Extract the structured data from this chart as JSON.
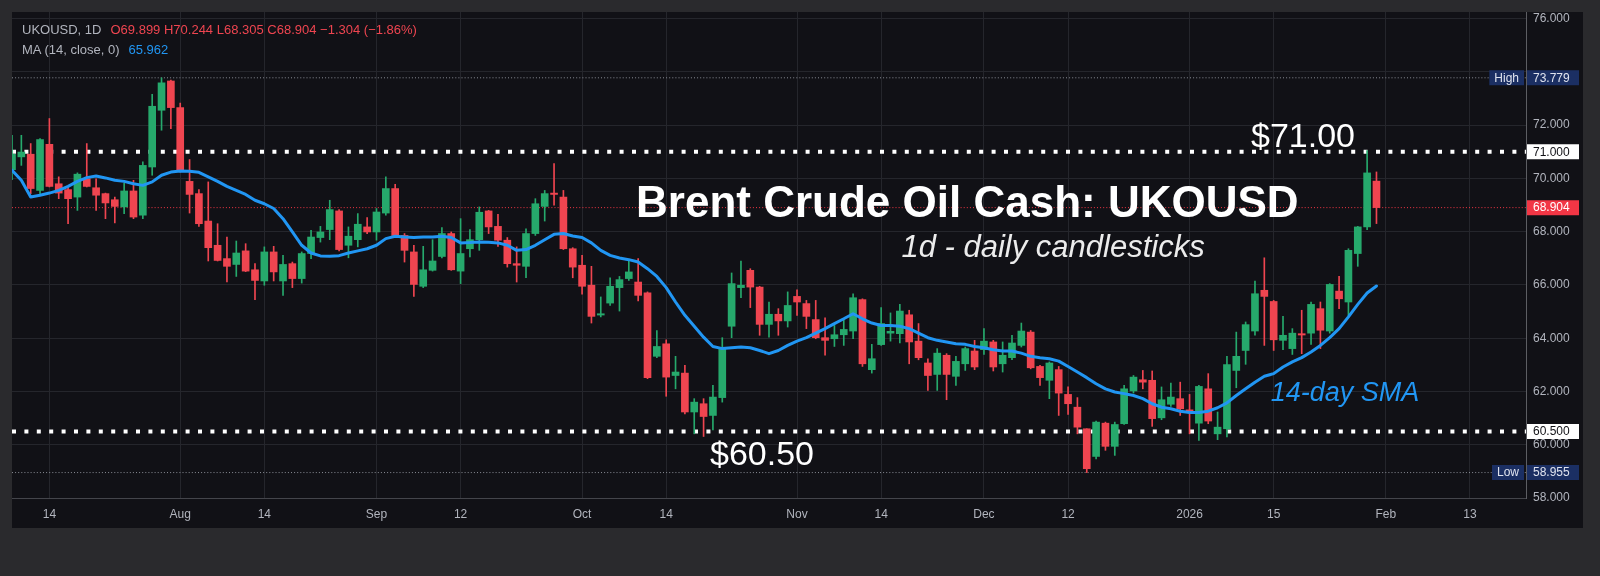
{
  "chart_data": {
    "type": "candlestick",
    "title": "Brent Crude Oil Cash: UKOUSD",
    "subtitle": "1d - daily candlesticks",
    "categories": [
      null,
      null,
      null,
      null,
      "14",
      null,
      null,
      null,
      null,
      null,
      null,
      null,
      null,
      null,
      null,
      null,
      null,
      null,
      "Aug",
      null,
      null,
      null,
      null,
      null,
      null,
      null,
      null,
      "14",
      null,
      null,
      null,
      null,
      null,
      null,
      null,
      null,
      null,
      null,
      null,
      "Sep",
      null,
      null,
      null,
      null,
      null,
      null,
      null,
      null,
      "12",
      null,
      null,
      null,
      null,
      null,
      null,
      null,
      null,
      null,
      null,
      null,
      null,
      "Oct",
      null,
      null,
      null,
      null,
      null,
      null,
      null,
      null,
      "14",
      null,
      null,
      null,
      null,
      null,
      null,
      null,
      null,
      null,
      null,
      null,
      null,
      null,
      "Nov",
      null,
      null,
      null,
      null,
      null,
      null,
      null,
      null,
      "14",
      null,
      null,
      null,
      null,
      null,
      null,
      null,
      null,
      null,
      null,
      "Dec",
      null,
      null,
      null,
      null,
      null,
      null,
      null,
      null,
      "12",
      null,
      null,
      null,
      null,
      null,
      null,
      null,
      null,
      null,
      null,
      null,
      null,
      "2026",
      null,
      null,
      null,
      null,
      null,
      null,
      null,
      null,
      "15",
      null,
      null,
      null,
      null,
      null,
      null,
      null,
      null,
      null,
      null,
      null,
      "Feb",
      null,
      null,
      null,
      null,
      null,
      null,
      null,
      null,
      "13",
      null,
      null,
      null,
      null,
      null,
      null
    ],
    "series": [
      {
        "ohlc": [
          [
            70.33,
            71.62,
            69.95,
            70.91
          ],
          [
            70.81,
            71.62,
            70.49,
            70.99
          ],
          [
            70.91,
            71.31,
            69.43,
            69.62
          ],
          [
            69.55,
            71.5,
            69.43,
            71.46
          ],
          [
            71.28,
            72.25,
            69.68,
            69.7
          ],
          [
            69.8,
            70.06,
            69.24,
            69.45
          ],
          [
            69.58,
            69.68,
            68.3,
            69.24
          ],
          [
            69.3,
            70.21,
            68.8,
            70.16
          ],
          [
            69.99,
            71.31,
            69.68,
            69.7
          ],
          [
            69.65,
            69.99,
            68.8,
            69.37
          ],
          [
            69.43,
            69.45,
            68.49,
            69.08
          ],
          [
            69.2,
            69.3,
            68.33,
            68.95
          ],
          [
            68.93,
            69.83,
            68.68,
            69.53
          ],
          [
            69.53,
            69.93,
            68.49,
            68.55
          ],
          [
            68.62,
            70.62,
            68.49,
            70.49
          ],
          [
            70.43,
            73.16,
            70.12,
            72.71
          ],
          [
            72.56,
            73.779,
            71.81,
            73.59
          ],
          [
            73.66,
            73.69,
            71.87,
            72.66
          ],
          [
            72.66,
            72.83,
            70.24,
            70.28
          ],
          [
            69.89,
            70.71,
            68.7,
            69.4
          ],
          [
            69.43,
            69.58,
            68.2,
            68.3
          ],
          [
            68.4,
            69.87,
            66.9,
            67.4
          ],
          [
            67.49,
            68.3,
            66.9,
            66.92
          ],
          [
            66.99,
            67.8,
            66.11,
            66.7
          ],
          [
            66.77,
            67.65,
            66.32,
            67.2
          ],
          [
            67.28,
            67.55,
            66.5,
            66.52
          ],
          [
            66.57,
            66.8,
            65.45,
            66.17
          ],
          [
            66.15,
            67.43,
            65.99,
            67.24
          ],
          [
            67.24,
            67.45,
            66.15,
            66.49
          ],
          [
            66.15,
            67.11,
            65.61,
            66.77
          ],
          [
            66.8,
            66.86,
            65.9,
            66.24
          ],
          [
            66.24,
            67.24,
            66.07,
            67.18
          ],
          [
            67.18,
            68.05,
            66.99,
            67.8
          ],
          [
            67.78,
            68.2,
            67.61,
            67.99
          ],
          [
            68.08,
            69.18,
            67.7,
            68.83
          ],
          [
            68.78,
            68.83,
            67.28,
            67.33
          ],
          [
            67.49,
            68.18,
            67.02,
            67.83
          ],
          [
            67.7,
            68.68,
            67.43,
            68.28
          ],
          [
            68.18,
            68.53,
            67.93,
            67.99
          ],
          [
            67.99,
            68.87,
            67.68,
            68.74
          ],
          [
            68.7,
            70.06,
            68.62,
            69.62
          ],
          [
            69.62,
            69.78,
            67.83,
            67.86
          ],
          [
            67.86,
            67.93,
            66.86,
            67.3
          ],
          [
            67.24,
            67.49,
            65.57,
            66.02
          ],
          [
            65.95,
            67.45,
            65.9,
            66.57
          ],
          [
            66.55,
            67.7,
            66.52,
            66.9
          ],
          [
            67.07,
            68.15,
            67.02,
            67.93
          ],
          [
            67.93,
            67.99,
            66.55,
            66.57
          ],
          [
            66.52,
            68.49,
            66.05,
            67.18
          ],
          [
            67.36,
            68.08,
            67.05,
            67.7
          ],
          [
            67.7,
            68.93,
            67.3,
            68.73
          ],
          [
            68.78,
            68.8,
            67.93,
            68.18
          ],
          [
            68.2,
            68.65,
            67.45,
            67.68
          ],
          [
            67.68,
            67.78,
            66.67,
            66.8
          ],
          [
            66.8,
            67.43,
            66.11,
            66.74
          ],
          [
            66.7,
            68.11,
            66.27,
            67.93
          ],
          [
            67.93,
            69.24,
            67.86,
            69.05
          ],
          [
            68.95,
            69.55,
            68.4,
            69.43
          ],
          [
            69.45,
            70.56,
            69.0,
            69.4
          ],
          [
            69.3,
            69.55,
            67.33,
            67.36
          ],
          [
            67.36,
            67.4,
            66.27,
            66.67
          ],
          [
            66.74,
            67.11,
            65.65,
            65.95
          ],
          [
            65.99,
            66.7,
            64.57,
            64.82
          ],
          [
            64.87,
            65.55,
            64.8,
            64.92
          ],
          [
            65.32,
            66.27,
            65.23,
            65.95
          ],
          [
            65.9,
            66.32,
            65.02,
            66.2
          ],
          [
            66.24,
            66.92,
            66.17,
            66.49
          ],
          [
            66.11,
            66.99,
            65.4,
            65.61
          ],
          [
            65.7,
            65.74,
            62.48,
            62.52
          ],
          [
            63.32,
            64.29,
            63.27,
            63.69
          ],
          [
            63.79,
            63.94,
            61.82,
            62.54
          ],
          [
            62.6,
            63.32,
            62.1,
            62.73
          ],
          [
            62.69,
            62.98,
            61.16,
            61.23
          ],
          [
            61.23,
            61.73,
            60.41,
            61.6
          ],
          [
            61.54,
            61.73,
            60.31,
            61.06
          ],
          [
            61.1,
            62.23,
            60.56,
            61.79
          ],
          [
            61.77,
            64.02,
            61.6,
            63.61
          ],
          [
            64.45,
            66.45,
            64.02,
            66.05
          ],
          [
            65.9,
            66.9,
            65.52,
            65.99
          ],
          [
            66.55,
            66.61,
            65.15,
            65.92
          ],
          [
            65.92,
            65.95,
            64.11,
            64.52
          ],
          [
            64.52,
            65.36,
            64.04,
            64.9
          ],
          [
            64.9,
            65.11,
            64.11,
            64.65
          ],
          [
            64.65,
            65.74,
            64.42,
            65.23
          ],
          [
            65.57,
            65.82,
            64.86,
            65.36
          ],
          [
            65.3,
            65.42,
            64.36,
            64.82
          ],
          [
            64.7,
            65.42,
            63.98,
            64.02
          ],
          [
            64.02,
            64.77,
            63.36,
            63.92
          ],
          [
            63.98,
            64.48,
            63.69,
            64.13
          ],
          [
            64.13,
            64.73,
            63.73,
            64.33
          ],
          [
            64.27,
            65.67,
            63.98,
            65.52
          ],
          [
            65.45,
            65.48,
            62.94,
            63.04
          ],
          [
            62.82,
            63.77,
            62.69,
            63.23
          ],
          [
            63.76,
            65.15,
            63.73,
            64.55
          ],
          [
            64.19,
            64.95,
            63.89,
            64.26
          ],
          [
            64.17,
            65.27,
            63.82,
            65.02
          ],
          [
            64.88,
            65.05,
            63.04,
            63.86
          ],
          [
            63.89,
            64.55,
            63.19,
            63.27
          ],
          [
            63.07,
            63.23,
            62.04,
            62.6
          ],
          [
            62.64,
            63.61,
            62.04,
            63.44
          ],
          [
            63.36,
            63.42,
            61.69,
            62.64
          ],
          [
            62.57,
            63.32,
            62.23,
            63.13
          ],
          [
            63.04,
            63.67,
            62.79,
            63.61
          ],
          [
            63.52,
            63.92,
            62.82,
            62.92
          ],
          [
            63.57,
            64.36,
            63.39,
            63.89
          ],
          [
            63.86,
            63.92,
            62.77,
            62.92
          ],
          [
            63.04,
            63.86,
            62.73,
            63.36
          ],
          [
            63.27,
            64.11,
            63.19,
            63.82
          ],
          [
            63.73,
            64.57,
            63.67,
            64.27
          ],
          [
            64.23,
            64.29,
            62.85,
            62.89
          ],
          [
            62.94,
            62.98,
            62.23,
            62.52
          ],
          [
            62.42,
            63.11,
            61.73,
            63.07
          ],
          [
            62.82,
            62.94,
            61.1,
            61.94
          ],
          [
            61.89,
            62.17,
            61.14,
            61.54
          ],
          [
            61.41,
            61.77,
            60.41,
            60.66
          ],
          [
            60.6,
            60.6,
            58.955,
            59.1
          ],
          [
            59.56,
            60.89,
            59.47,
            60.85
          ],
          [
            60.81,
            60.85,
            59.79,
            59.94
          ],
          [
            59.94,
            60.85,
            59.6,
            60.76
          ],
          [
            60.79,
            62.23,
            60.76,
            62.1
          ],
          [
            62.02,
            62.6,
            61.94,
            62.54
          ],
          [
            62.44,
            62.79,
            62.1,
            62.35
          ],
          [
            62.42,
            62.77,
            60.69,
            60.98
          ],
          [
            61.01,
            62.17,
            60.94,
            61.69
          ],
          [
            61.52,
            62.32,
            61.44,
            61.79
          ],
          [
            61.73,
            62.35,
            61.1,
            61.35
          ],
          [
            61.31,
            61.89,
            60.41,
            61.21
          ],
          [
            60.81,
            62.23,
            60.16,
            62.19
          ],
          [
            62.1,
            62.67,
            60.79,
            60.89
          ],
          [
            60.41,
            61.23,
            60.19,
            60.66
          ],
          [
            60.6,
            63.32,
            60.29,
            63.01
          ],
          [
            62.79,
            64.23,
            62.14,
            63.32
          ],
          [
            63.54,
            64.61,
            63.02,
            64.51
          ],
          [
            64.27,
            66.15,
            64.11,
            65.67
          ],
          [
            65.8,
            67.02,
            63.73,
            65.57
          ],
          [
            65.38,
            65.42,
            63.54,
            63.94
          ],
          [
            63.92,
            64.82,
            63.57,
            64.11
          ],
          [
            63.61,
            64.36,
            63.39,
            64.19
          ],
          [
            64.17,
            65.05,
            63.42,
            64.12
          ],
          [
            64.19,
            65.36,
            63.77,
            65.27
          ],
          [
            65.11,
            65.36,
            63.61,
            64.3
          ],
          [
            64.27,
            66.05,
            64.19,
            66.02
          ],
          [
            65.77,
            66.32,
            65.11,
            65.48
          ],
          [
            65.36,
            67.36,
            64.86,
            67.3
          ],
          [
            67.18,
            68.2,
            66.7,
            68.18
          ],
          [
            68.18,
            71.05,
            68.08,
            70.208
          ],
          [
            69.899,
            70.244,
            68.305,
            68.904
          ],
          null,
          null,
          null,
          null,
          null,
          null,
          null,
          null,
          null,
          null,
          null,
          null,
          null,
          null,
          null,
          null
        ],
        "colors": [
          "#26a96c",
          "#26a96c",
          "#ef4550",
          "#26a96c",
          "#ef4550",
          "#ef4550",
          "#ef4550",
          "#26a96c",
          "#ef4550",
          "#ef4550",
          "#ef4550",
          "#ef4550",
          "#26a96c",
          "#ef4550",
          "#26a96c",
          "#26a96c",
          "#26a96c",
          "#ef4550",
          "#ef4550",
          "#ef4550",
          "#ef4550",
          "#ef4550",
          "#ef4550",
          "#ef4550",
          "#26a96c",
          "#ef4550",
          "#ef4550",
          "#26a96c",
          "#ef4550",
          "#26a96c",
          "#ef4550",
          "#26a96c",
          "#26a96c",
          "#26a96c",
          "#26a96c",
          "#ef4550",
          "#26a96c",
          "#26a96c",
          "#ef4550",
          "#26a96c",
          "#26a96c",
          "#ef4550",
          "#ef4550",
          "#ef4550",
          "#26a96c",
          "#26a96c",
          "#26a96c",
          "#ef4550",
          "#26a96c",
          "#26a96c",
          "#26a96c",
          "#ef4550",
          "#ef4550",
          "#ef4550",
          "#ef4550",
          "#26a96c",
          "#26a96c",
          "#26a96c",
          "#ef4550",
          "#ef4550",
          "#ef4550",
          "#ef4550",
          "#ef4550",
          "#26a96c",
          "#26a96c",
          "#26a96c",
          "#26a96c",
          "#ef4550",
          "#ef4550",
          "#26a96c",
          "#ef4550",
          "#26a96c",
          "#ef4550",
          "#26a96c",
          "#ef4550",
          "#26a96c",
          "#26a96c",
          "#26a96c",
          "#26a96c",
          "#ef4550",
          "#ef4550",
          "#26a96c",
          "#ef4550",
          "#26a96c",
          "#ef4550",
          "#ef4550",
          "#ef4550",
          "#ef4550",
          "#26a96c",
          "#26a96c",
          "#26a96c",
          "#ef4550",
          "#26a96c",
          "#26a96c",
          "#26a96c",
          "#26a96c",
          "#ef4550",
          "#ef4550",
          "#ef4550",
          "#26a96c",
          "#ef4550",
          "#26a96c",
          "#26a96c",
          "#ef4550",
          "#26a96c",
          "#ef4550",
          "#26a96c",
          "#26a96c",
          "#26a96c",
          "#ef4550",
          "#ef4550",
          "#26a96c",
          "#ef4550",
          "#ef4550",
          "#ef4550",
          "#ef4550",
          "#26a96c",
          "#ef4550",
          "#26a96c",
          "#26a96c",
          "#26a96c",
          "#ef4550",
          "#ef4550",
          "#26a96c",
          "#26a96c",
          "#ef4550",
          "#ef4550",
          "#26a96c",
          "#ef4550",
          "#26a96c",
          "#26a96c",
          "#26a96c",
          "#26a96c",
          "#26a96c",
          "#ef4550",
          "#ef4550",
          "#26a96c",
          "#26a96c",
          "#ef4550",
          "#26a96c",
          "#ef4550",
          "#26a96c",
          "#ef4550",
          "#26a96c",
          "#26a96c",
          "#26a96c",
          "#ef4550",
          null,
          null,
          null,
          null,
          null,
          null,
          null,
          null,
          null,
          null,
          null,
          null,
          null,
          null,
          null,
          null
        ]
      },
      {
        "name": "14-day SMA",
        "type": "line",
        "color": "#2196f3",
        "values": [
          70.31,
          69.93,
          69.3,
          69.37,
          69.45,
          69.55,
          69.7,
          69.89,
          70.03,
          70.09,
          70.02,
          69.93,
          69.89,
          69.8,
          69.74,
          69.87,
          70.12,
          70.24,
          70.28,
          70.27,
          70.23,
          70.06,
          69.89,
          69.7,
          69.55,
          69.4,
          69.18,
          69.05,
          68.87,
          68.49,
          67.99,
          67.49,
          67.2,
          67.09,
          67.08,
          67.1,
          67.2,
          67.28,
          67.36,
          67.49,
          67.74,
          67.83,
          67.8,
          67.78,
          67.8,
          67.8,
          67.83,
          67.78,
          67.58,
          67.59,
          67.61,
          67.6,
          67.58,
          67.49,
          67.3,
          67.33,
          67.49,
          67.7,
          67.9,
          67.93,
          67.84,
          67.78,
          67.58,
          67.3,
          67.11,
          67.01,
          66.95,
          66.86,
          66.61,
          66.32,
          65.9,
          65.36,
          64.86,
          64.45,
          64.04,
          63.69,
          63.61,
          63.64,
          63.67,
          63.64,
          63.54,
          63.42,
          63.54,
          63.73,
          63.89,
          64.02,
          64.19,
          64.36,
          64.55,
          64.73,
          64.92,
          64.73,
          64.57,
          64.48,
          64.48,
          64.45,
          64.36,
          64.19,
          64.02,
          63.92,
          63.86,
          63.79,
          63.77,
          63.69,
          63.64,
          63.57,
          63.52,
          63.52,
          63.44,
          63.32,
          63.27,
          63.23,
          63.14,
          62.94,
          62.73,
          62.52,
          62.29,
          62.1,
          61.98,
          61.92,
          61.85,
          61.73,
          61.54,
          61.41,
          61.35,
          61.26,
          61.21,
          61.21,
          61.26,
          61.39,
          61.57,
          61.85,
          62.1,
          62.35,
          62.57,
          62.67,
          62.92,
          63.11,
          63.27,
          63.48,
          63.73,
          64.02,
          64.36,
          64.8,
          65.27,
          65.7,
          65.962,
          null,
          null,
          null,
          null,
          null,
          null,
          null,
          null,
          null,
          null,
          null,
          null,
          null,
          null,
          null,
          null
        ]
      }
    ],
    "ylim": [
      58,
      76.25
    ],
    "yticks": [
      {
        "value": 58,
        "label": "58.000"
      },
      {
        "value": 60,
        "label": "60.000"
      },
      {
        "value": 62,
        "label": "62.000"
      },
      {
        "value": 64,
        "label": "64.000"
      },
      {
        "value": 66,
        "label": "66.000"
      },
      {
        "value": 68,
        "label": "68.000"
      },
      {
        "value": 70,
        "label": "70.000"
      },
      {
        "value": 72,
        "label": "72.000"
      },
      {
        "value": 74,
        "label": null
      },
      {
        "value": 76,
        "label": "76.000"
      }
    ],
    "grid": true,
    "marker": "none",
    "ref_lines": [
      {
        "axis": "y",
        "value": 73.779,
        "label": "High",
        "color": "#8a8d96",
        "line_style": "dotted"
      },
      {
        "axis": "y",
        "value": 71,
        "label": "$71.00",
        "color": "#ffffff",
        "line_style": "dotted"
      },
      {
        "axis": "y",
        "value": 68.904,
        "color": "#f23645",
        "line_style": "dotted"
      },
      {
        "axis": "y",
        "value": 60.5,
        "label": "$60.50",
        "color": "#ffffff",
        "line_style": "dotted"
      },
      {
        "axis": "y",
        "value": 58.955,
        "label": "Low",
        "color": "#8a8d96",
        "line_style": "dotted"
      }
    ],
    "annotations": [
      "UKOUSD, 1D",
      "O69.899 H70.244 L68.305 C68.904 −1.304 (−1.86%)",
      "MA (14, close, 0)",
      "65.962",
      "73.779",
      "71.000",
      "68.904",
      "60.500",
      "58.955"
    ]
  }
}
